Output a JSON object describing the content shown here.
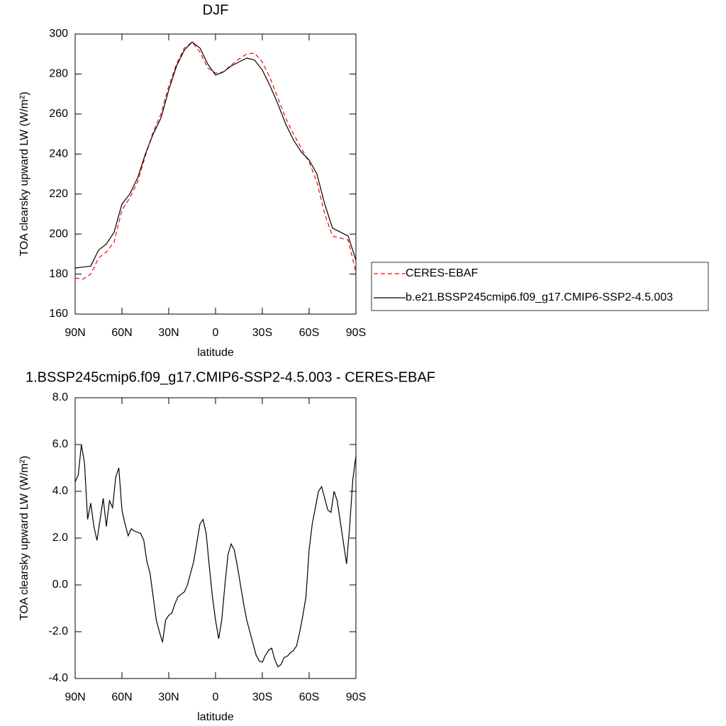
{
  "chart_data": [
    {
      "type": "line",
      "title": "DJF",
      "xlabel": "latitude",
      "ylabel": "TOA clearsky upward LW (W/m²)",
      "x": [
        90,
        85,
        80,
        75,
        70,
        65,
        60,
        55,
        50,
        45,
        40,
        35,
        30,
        25,
        20,
        15,
        10,
        5,
        0,
        -5,
        -10,
        -15,
        -20,
        -25,
        -30,
        -35,
        -40,
        -45,
        -50,
        -55,
        -60,
        -65,
        -70,
        -75,
        -80,
        -85,
        -90
      ],
      "xlim": [
        90,
        -90
      ],
      "xticks": [
        {
          "value": 90,
          "label": "90N"
        },
        {
          "value": 60,
          "label": "60N"
        },
        {
          "value": 30,
          "label": "30N"
        },
        0,
        {
          "value": -30,
          "label": "30S"
        },
        {
          "value": -60,
          "label": "60S"
        },
        {
          "value": -90,
          "label": "90S"
        }
      ],
      "ylim": [
        160,
        300
      ],
      "yticks": [
        160,
        180,
        200,
        220,
        240,
        260,
        280,
        300
      ],
      "legend": "right",
      "series": [
        {
          "name": "CERES-EBAF",
          "color": "#ff0000",
          "line_style": "dashed",
          "values": [
            178,
            177.5,
            180,
            188,
            191,
            196,
            212,
            218,
            226,
            239,
            251,
            260,
            274,
            285,
            293,
            296,
            291,
            283,
            280.5,
            281,
            284.5,
            287.5,
            290,
            290.5,
            286,
            278,
            268,
            258,
            250,
            243,
            236,
            226,
            210,
            199,
            198,
            197,
            181
          ]
        },
        {
          "name": "b.e21.BSSP245cmip6.f09_g17.CMIP6-SSP2-4.5.003",
          "color": "#000000",
          "line_style": "solid",
          "values": [
            183,
            183.5,
            184,
            192,
            195,
            201,
            215,
            220,
            228,
            240,
            250,
            258,
            272,
            284,
            292,
            296,
            293,
            285,
            279.5,
            281,
            284,
            286,
            288,
            287,
            282,
            274,
            265,
            255,
            247,
            241,
            237,
            230,
            215,
            203,
            201,
            199,
            187
          ]
        }
      ]
    },
    {
      "type": "line",
      "title": "1.BSSP245cmip6.f09_g17.CMIP6-SSP2-4.5.003 - CERES-EBAF",
      "xlabel": "latitude",
      "ylabel": "TOA clearsky upward LW (W/m²)",
      "x": [
        90,
        88,
        86,
        84,
        82,
        80,
        78,
        76,
        74,
        72,
        70,
        68,
        66,
        64,
        62,
        60,
        58,
        56,
        54,
        52,
        50,
        48,
        46,
        44,
        42,
        40,
        38,
        36,
        34,
        32,
        30,
        28,
        26,
        24,
        22,
        20,
        18,
        16,
        14,
        12,
        10,
        8,
        6,
        4,
        2,
        0,
        -2,
        -4,
        -6,
        -8,
        -10,
        -12,
        -14,
        -16,
        -18,
        -20,
        -22,
        -24,
        -26,
        -28,
        -30,
        -32,
        -34,
        -36,
        -38,
        -40,
        -42,
        -44,
        -46,
        -48,
        -50,
        -52,
        -54,
        -56,
        -58,
        -60,
        -62,
        -64,
        -66,
        -68,
        -70,
        -72,
        -74,
        -76,
        -78,
        -80,
        -82,
        -84,
        -86,
        -88,
        -90
      ],
      "xlim": [
        90,
        -90
      ],
      "xticks": [
        {
          "value": 90,
          "label": "90N"
        },
        {
          "value": 60,
          "label": "60N"
        },
        {
          "value": 30,
          "label": "30N"
        },
        0,
        {
          "value": -30,
          "label": "30S"
        },
        {
          "value": -60,
          "label": "60S"
        },
        {
          "value": -90,
          "label": "90S"
        }
      ],
      "ylim": [
        -4,
        8
      ],
      "yticks": [
        {
          "value": -4,
          "label": "-4.0"
        },
        {
          "value": -2,
          "label": "-2.0"
        },
        {
          "value": 0,
          "label": "0.0"
        },
        {
          "value": 2,
          "label": "2.0"
        },
        {
          "value": 4,
          "label": "4.0"
        },
        {
          "value": 6,
          "label": "6.0"
        },
        {
          "value": 8,
          "label": "8.0"
        }
      ],
      "series": [
        {
          "color": "#000000",
          "line_style": "solid",
          "values": [
            4.4,
            4.7,
            6.0,
            5.2,
            2.8,
            3.5,
            2.5,
            1.9,
            2.8,
            3.7,
            2.5,
            3.6,
            3.3,
            4.6,
            5.0,
            3.2,
            2.6,
            2.1,
            2.4,
            2.3,
            2.25,
            2.2,
            1.9,
            1.0,
            0.5,
            -0.5,
            -1.5,
            -2.0,
            -2.45,
            -1.5,
            -1.3,
            -1.2,
            -0.8,
            -0.5,
            -0.4,
            -0.3,
            0.0,
            0.5,
            1.0,
            1.8,
            2.6,
            2.8,
            2.2,
            0.8,
            -0.5,
            -1.5,
            -2.3,
            -1.5,
            0.0,
            1.3,
            1.75,
            1.5,
            0.8,
            0.0,
            -0.8,
            -1.5,
            -2.0,
            -2.5,
            -3.0,
            -3.25,
            -3.3,
            -3.0,
            -2.8,
            -2.7,
            -3.2,
            -3.5,
            -3.4,
            -3.1,
            -3.05,
            -2.9,
            -2.8,
            -2.6,
            -2.0,
            -1.3,
            -0.5,
            1.5,
            2.6,
            3.3,
            4.0,
            4.2,
            3.7,
            3.2,
            3.1,
            4.0,
            3.6,
            2.7,
            1.8,
            0.9,
            2.5,
            4.5,
            5.5
          ]
        }
      ]
    }
  ]
}
